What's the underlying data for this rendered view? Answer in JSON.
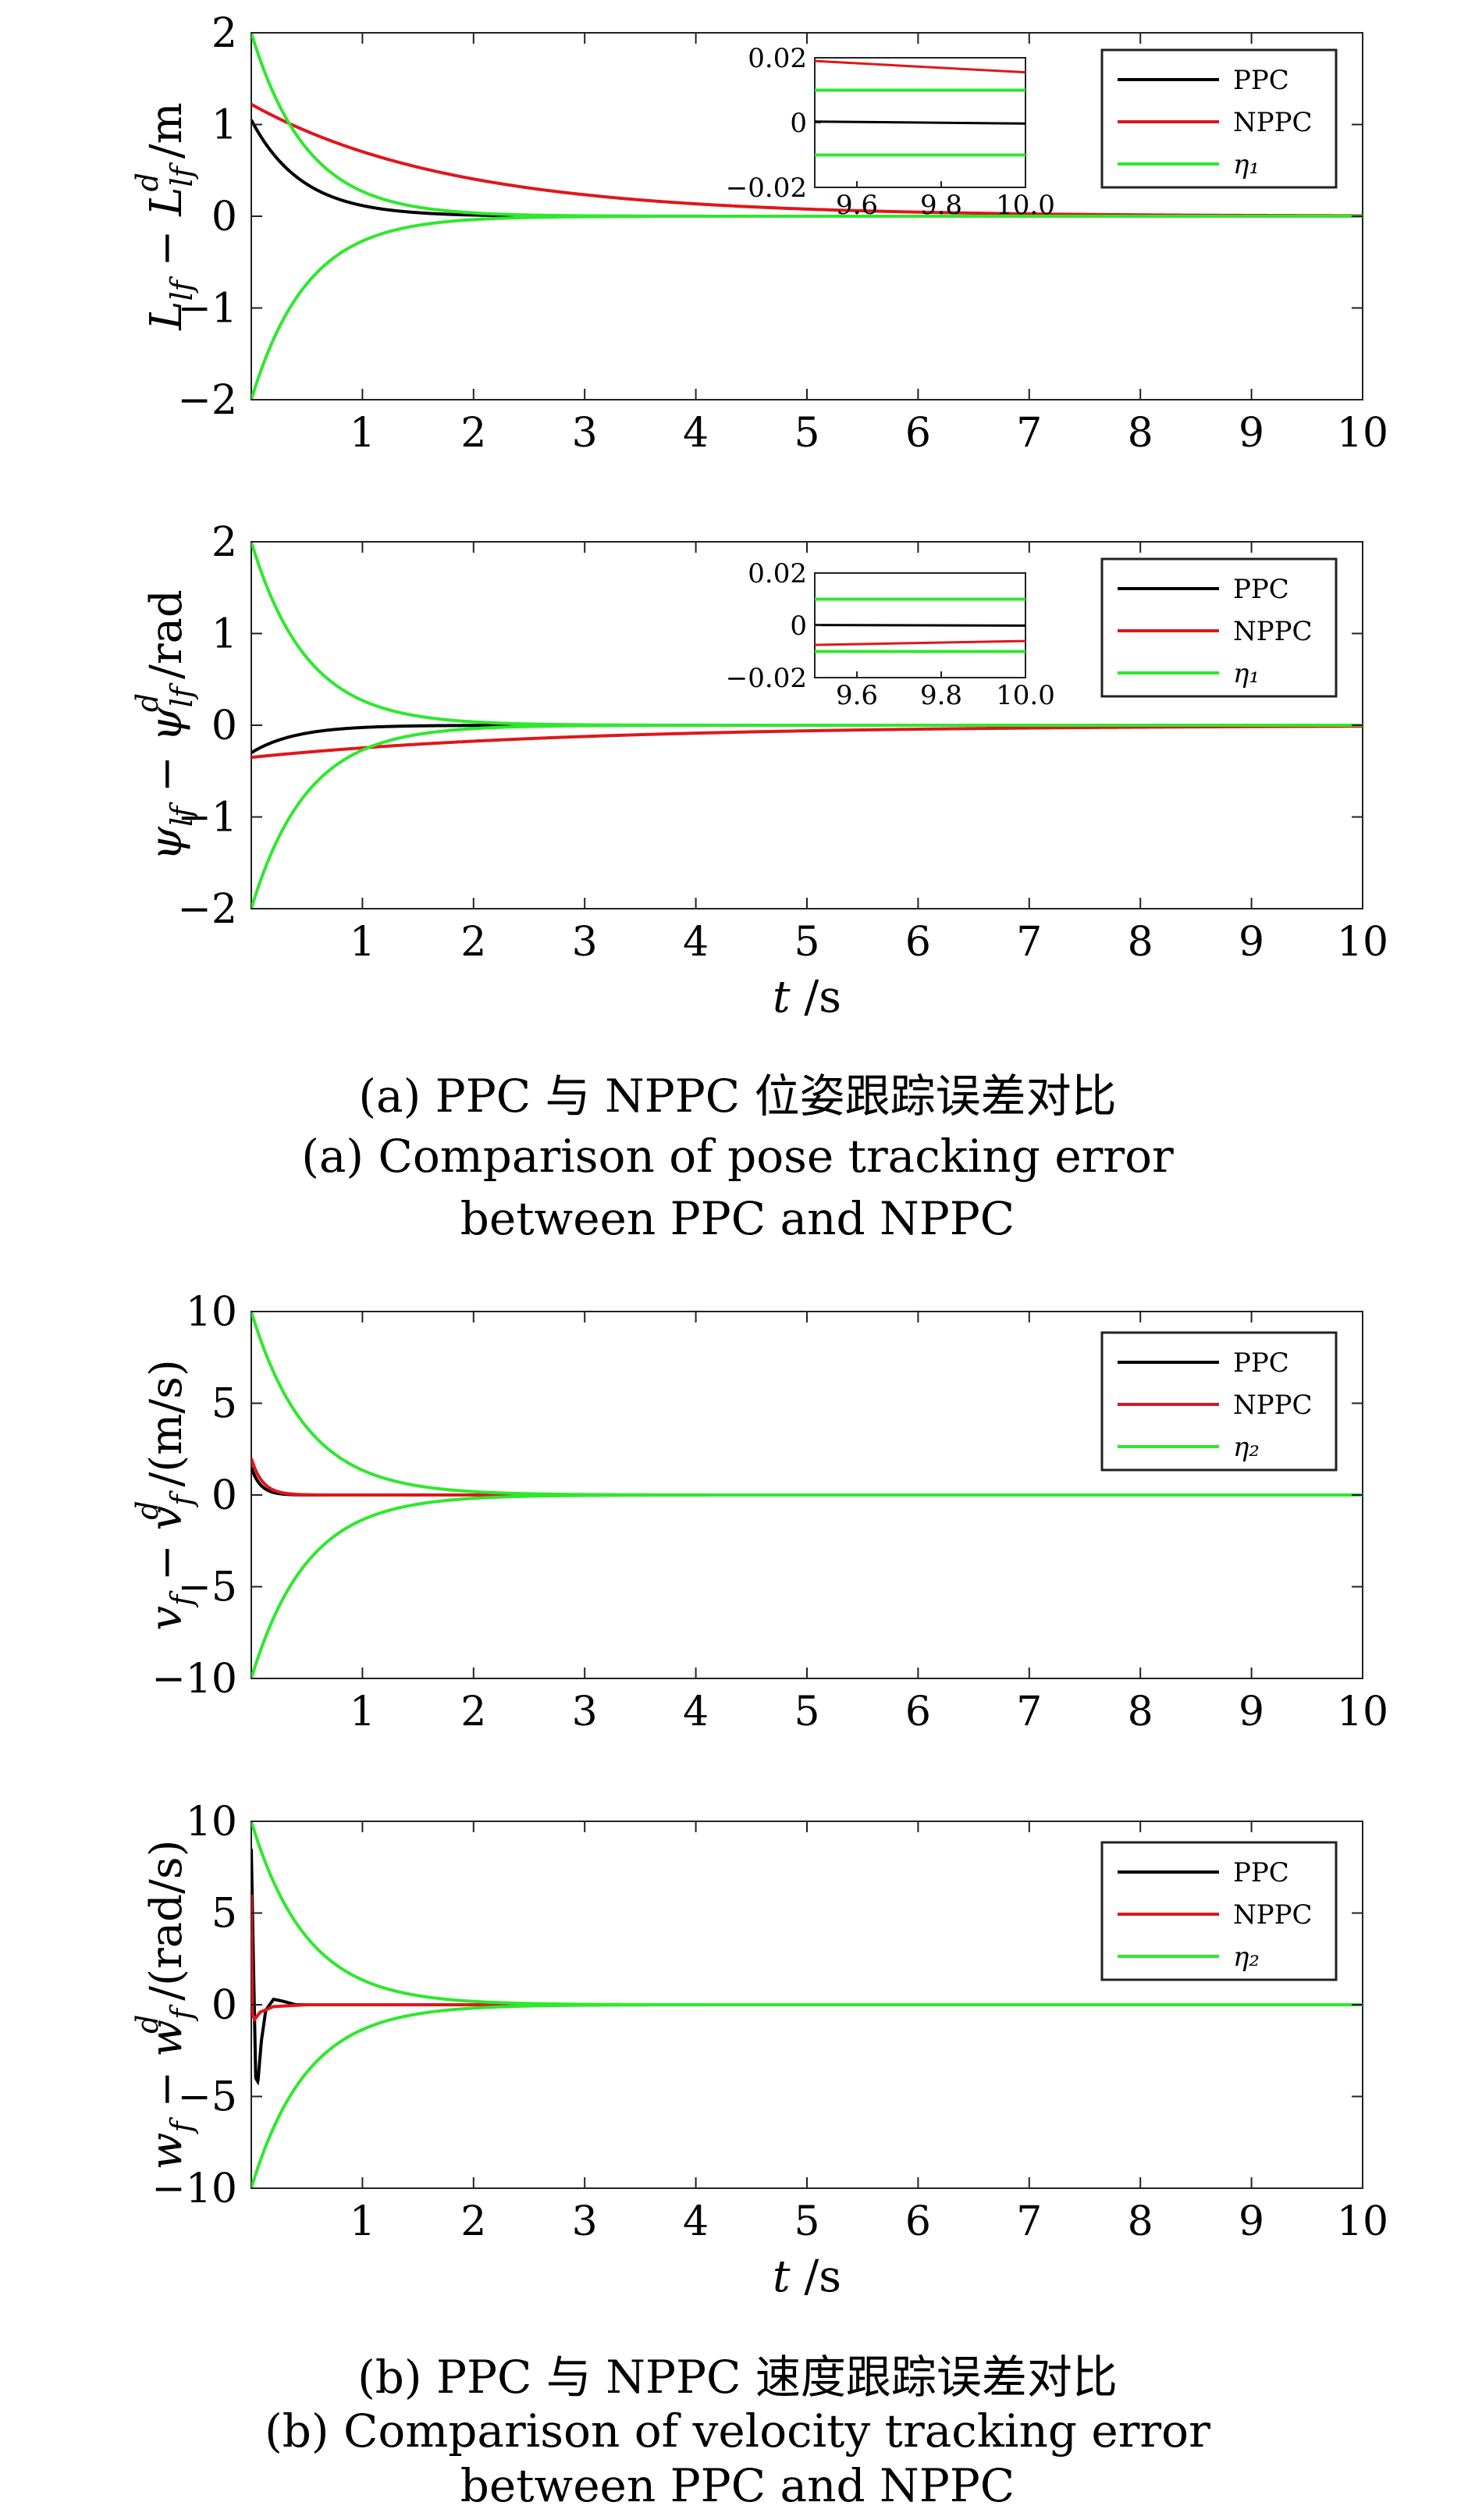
{
  "charts": [
    {
      "type": "line",
      "ylabel": "L_lf − L_lf^d /m",
      "ylim": [
        -2,
        2
      ],
      "yticks": [
        "−2",
        "−1",
        "0",
        "1",
        "2"
      ],
      "xlim": [
        0,
        10
      ],
      "xticks": [
        "1",
        "2",
        "3",
        "4",
        "5",
        "6",
        "7",
        "8",
        "9",
        "10"
      ],
      "xlabel": "",
      "legend": {
        "placement": "top-right",
        "entries": [
          "PPC",
          "NPPC",
          "η₁"
        ]
      },
      "series": [
        {
          "name": "PPC",
          "color": "#000000",
          "y0": 1.05,
          "decay": 2.2
        },
        {
          "name": "NPPC",
          "color": "#e0161b",
          "y0": 1.22,
          "decay": 0.55
        },
        {
          "name": "η₁",
          "color": "#2ee82e",
          "y0": 2.0,
          "decay": 2.0,
          "envelope": true
        }
      ],
      "inset": {
        "xlim": [
          9.5,
          10.0
        ],
        "ylim": [
          -0.02,
          0.02
        ],
        "xticks": [
          "9.6",
          "9.8",
          "10.0"
        ],
        "yticks": [
          "0.02",
          "0",
          "−0.02"
        ],
        "ppc_range": [
          0.0003,
          -0.0003
        ],
        "nppc_range": [
          0.019,
          0.0155
        ],
        "eta": 0.01
      }
    },
    {
      "type": "line",
      "ylabel": "ψ_lf − ψ_lf^d /rad",
      "ylim": [
        -2,
        2
      ],
      "yticks": [
        "−2",
        "−1",
        "0",
        "1",
        "2"
      ],
      "xlim": [
        0,
        10
      ],
      "xticks": [
        "1",
        "2",
        "3",
        "4",
        "5",
        "6",
        "7",
        "8",
        "9",
        "10"
      ],
      "xlabel": "t /s",
      "legend": {
        "placement": "top-right",
        "entries": [
          "PPC",
          "NPPC",
          "η₁"
        ]
      },
      "series": [
        {
          "name": "PPC",
          "color": "#000000",
          "y0": -0.3,
          "decay": 2.5
        },
        {
          "name": "NPPC",
          "color": "#e0161b",
          "y0": -0.35,
          "decay": 0.35
        },
        {
          "name": "η₁",
          "color": "#2ee82e",
          "y0": 2.0,
          "decay": 2.0,
          "envelope": true
        }
      ],
      "inset": {
        "xlim": [
          9.5,
          10.0
        ],
        "ylim": [
          -0.02,
          0.02
        ],
        "xticks": [
          "9.6",
          "9.8",
          "10.0"
        ],
        "yticks": [
          "0.02",
          "0",
          "−0.02"
        ],
        "ppc_range": [
          0.0001,
          -0.0001
        ],
        "nppc_range": [
          -0.0075,
          -0.006
        ],
        "eta": 0.01
      }
    },
    {
      "type": "line",
      "ylabel": "v_f − v_f^d /(m/s)",
      "ylim": [
        -10,
        10
      ],
      "yticks": [
        "−10",
        "−5",
        "0",
        "5",
        "10"
      ],
      "xlim": [
        0,
        10
      ],
      "xticks": [
        "1",
        "2",
        "3",
        "4",
        "5",
        "6",
        "7",
        "8",
        "9",
        "10"
      ],
      "xlabel": "",
      "legend": {
        "placement": "top-right",
        "entries": [
          "PPC",
          "NPPC",
          "η₂"
        ]
      },
      "series": [
        {
          "name": "PPC",
          "color": "#000000",
          "y0": 1.5,
          "decay": 12
        },
        {
          "name": "NPPC",
          "color": "#e0161b",
          "y0": 2.0,
          "decay": 10
        },
        {
          "name": "η₂",
          "color": "#2ee82e",
          "y0": 10.0,
          "decay": 2.0,
          "envelope": true
        }
      ]
    },
    {
      "type": "line",
      "ylabel": "w_f − w_f^d /(rad/s)",
      "ylim": [
        -10,
        10
      ],
      "yticks": [
        "−10",
        "−5",
        "0",
        "5",
        "10"
      ],
      "xlim": [
        0,
        10
      ],
      "xticks": [
        "1",
        "2",
        "3",
        "4",
        "5",
        "6",
        "7",
        "8",
        "9",
        "10"
      ],
      "xlabel": "t /s",
      "legend": {
        "placement": "top-right",
        "entries": [
          "PPC",
          "NPPC",
          "η₂"
        ]
      },
      "series": [
        {
          "name": "PPC",
          "color": "#000000",
          "points": [
            [
              0,
              8.5
            ],
            [
              0.02,
              2
            ],
            [
              0.04,
              -4
            ],
            [
              0.06,
              -4.2
            ],
            [
              0.09,
              -2
            ],
            [
              0.13,
              -0.3
            ],
            [
              0.2,
              0.3
            ],
            [
              0.28,
              0.2
            ],
            [
              0.4,
              0
            ],
            [
              10,
              0
            ]
          ]
        },
        {
          "name": "NPPC",
          "color": "#e0161b",
          "points": [
            [
              0,
              6
            ],
            [
              0.01,
              -0.5
            ],
            [
              0.03,
              -0.8
            ],
            [
              0.08,
              -0.4
            ],
            [
              0.2,
              -0.1
            ],
            [
              0.5,
              0
            ],
            [
              10,
              0
            ]
          ]
        },
        {
          "name": "η₂",
          "color": "#2ee82e",
          "y0": 10.0,
          "decay": 2.0,
          "envelope": true
        }
      ]
    }
  ],
  "captions": {
    "a_cn": "(a) PPC 与 NPPC 位姿跟踪误差对比",
    "a_en1": "(a) Comparison of pose tracking error",
    "a_en2": "between PPC and NPPC",
    "b_cn": "(b) PPC 与 NPPC 速度跟踪误差对比",
    "b_en1": "(b) Comparison of velocity tracking error",
    "b_en2": "between PPC and NPPC"
  }
}
